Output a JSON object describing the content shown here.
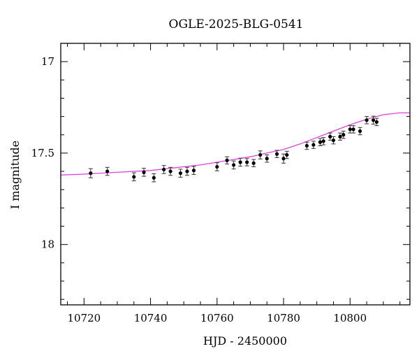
{
  "chart_data": {
    "type": "scatter",
    "title": "OGLE-2025-BLG-0541",
    "xlabel": "HJD - 2450000",
    "ylabel": "I magnitude",
    "xlim": [
      10713,
      10818
    ],
    "ylim": [
      18.33,
      16.9
    ],
    "y_inverted": true,
    "x_ticks": [
      10720,
      10740,
      10760,
      10780,
      10800
    ],
    "y_ticks": [
      17,
      17.5,
      18
    ],
    "x_tick_labels": [
      "10720",
      "10740",
      "10760",
      "10780",
      "10800"
    ],
    "y_tick_labels": [
      "17",
      "17.5",
      "18"
    ],
    "x_minor_step": 5,
    "y_minor_step": 0.1,
    "grid": false,
    "model_color": "#e040e0",
    "point_color": "#000000",
    "model_curve": {
      "x": [
        10713,
        10720,
        10730,
        10740,
        10745,
        10750,
        10755,
        10760,
        10765,
        10770,
        10775,
        10780,
        10785,
        10790,
        10795,
        10800,
        10805,
        10810,
        10815,
        10818
      ],
      "y": [
        17.62,
        17.615,
        17.605,
        17.595,
        17.585,
        17.575,
        17.565,
        17.55,
        17.535,
        17.52,
        17.5,
        17.48,
        17.45,
        17.415,
        17.38,
        17.345,
        17.315,
        17.29,
        17.28,
        17.28
      ]
    },
    "series": [
      {
        "x": [
          10722,
          10727,
          10735,
          10738,
          10741,
          10744,
          10746,
          10749,
          10751,
          10753,
          10760,
          10763,
          10765,
          10767,
          10769,
          10771,
          10773,
          10775,
          10778,
          10780,
          10781,
          10787,
          10789,
          10791,
          10792,
          10794,
          10795,
          10797,
          10798,
          10800,
          10801,
          10803,
          10805,
          10807,
          10808
        ],
        "y": [
          17.61,
          17.6,
          17.63,
          17.605,
          17.635,
          17.59,
          17.6,
          17.61,
          17.6,
          17.595,
          17.575,
          17.54,
          17.565,
          17.55,
          17.55,
          17.555,
          17.51,
          17.53,
          17.505,
          17.53,
          17.51,
          17.46,
          17.455,
          17.44,
          17.435,
          17.41,
          17.43,
          17.41,
          17.4,
          17.37,
          17.37,
          17.38,
          17.32,
          17.32,
          17.33
        ],
        "err": [
          0.025,
          0.022,
          0.022,
          0.022,
          0.022,
          0.022,
          0.022,
          0.022,
          0.022,
          0.022,
          0.022,
          0.02,
          0.022,
          0.022,
          0.02,
          0.02,
          0.022,
          0.02,
          0.02,
          0.025,
          0.02,
          0.02,
          0.02,
          0.02,
          0.02,
          0.02,
          0.02,
          0.02,
          0.02,
          0.02,
          0.02,
          0.02,
          0.02,
          0.022,
          0.02
        ]
      }
    ]
  }
}
